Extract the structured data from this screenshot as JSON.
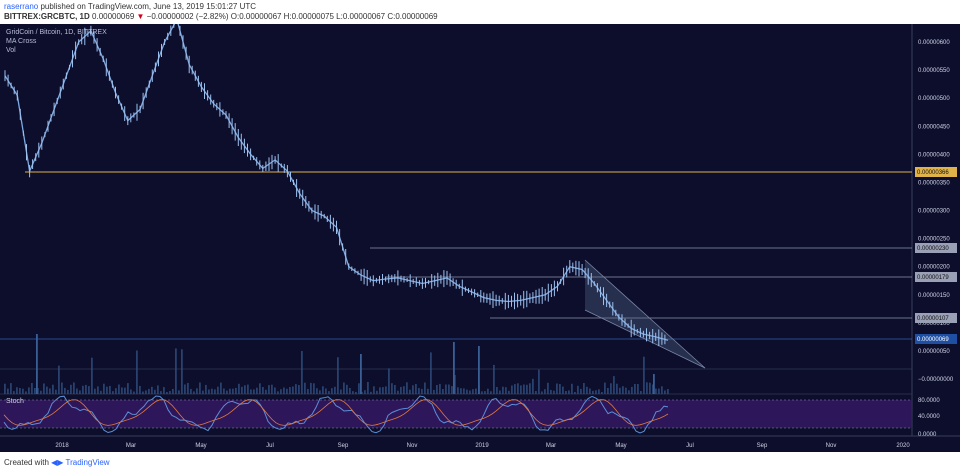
{
  "header": {
    "author": "raserrano",
    "published_text": "published on TradingView.com, June 13, 2019 15:01:27 UTC",
    "symbol": "BITTREX:GRCBTC, 1D",
    "last": "0.00000069",
    "change": "−0.00000002 (−2.82%)",
    "ohlc": "O:0.00000067 H:0.00000075 L:0.00000067 C:0.00000069"
  },
  "chart": {
    "title": "GridCoin / Bitcoin, 1D, BITTREX",
    "indicator_ma": "MA Cross",
    "indicator_vol": "Vol",
    "stoch_label": "Stoch",
    "colors": {
      "background": "#0c0e2b",
      "candle": "#7ea9e0",
      "support": "#e0b24a",
      "level": "#9aa0b5",
      "last_tag": "#1e4fa3",
      "stoch_band": "#3a1a6b"
    },
    "price_axis": [
      "0.00000600",
      "0.00000550",
      "0.00000500",
      "0.00000450",
      "0.00000400",
      "0.00000350",
      "0.00000300",
      "0.00000250",
      "0.00000200",
      "0.00000150",
      "0.00000100",
      "0.00000050",
      "−0.00000000"
    ],
    "tags": [
      {
        "value": "0.00000366",
        "style": "yellow"
      },
      {
        "value": "0.00000230",
        "style": "gray"
      },
      {
        "value": "0.00000179",
        "style": "gray"
      },
      {
        "value": "0.00000107",
        "style": "gray"
      },
      {
        "value": "0.00000069",
        "style": "blue"
      }
    ],
    "stoch_axis": [
      "80.0000",
      "40.0000",
      "0.0000"
    ],
    "time_axis": [
      "2018",
      "Mar",
      "May",
      "Jul",
      "Sep",
      "Nov",
      "2019",
      "Mar",
      "May",
      "Jul",
      "Sep",
      "Nov",
      "2020"
    ]
  },
  "chart_data": {
    "type": "line",
    "series": [
      {
        "values": [
          540,
          505,
          370,
          420,
          480,
          540,
          600,
          620,
          570,
          510,
          460,
          480,
          540,
          600,
          640,
          560,
          520,
          490,
          470,
          430,
          400,
          375,
          390,
          370,
          330,
          300,
          290,
          270,
          200,
          185,
          175,
          178,
          180,
          175,
          170,
          175,
          180,
          165,
          155,
          145,
          140,
          138,
          140,
          145,
          150,
          165,
          200,
          195,
          170,
          140,
          110,
          90,
          80,
          75,
          69
        ]
      }
    ]
  },
  "footer": {
    "created_with": "Created with",
    "brand": "TradingView"
  }
}
